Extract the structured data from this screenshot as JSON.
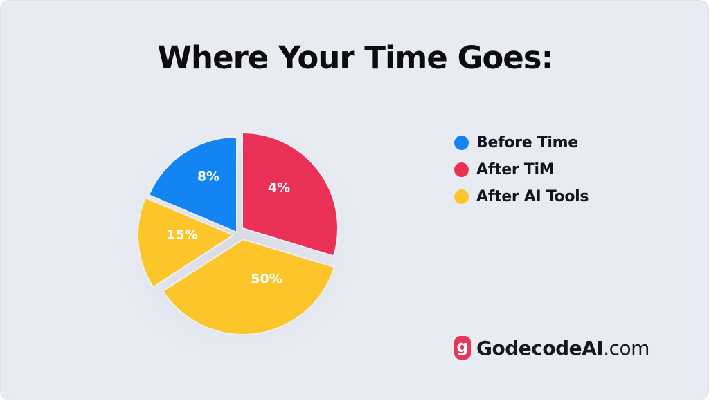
{
  "title": "Where Your Time Goes:",
  "chart_data": {
    "type": "pie",
    "title": "Where Your Time Goes:",
    "slices": [
      {
        "label": "8%",
        "value": 8,
        "color": "#1385f2"
      },
      {
        "label": "4%",
        "value": 4,
        "color": "#ea3057"
      },
      {
        "label": "50%",
        "value": 50,
        "color": "#fcc62a"
      },
      {
        "label": "15%",
        "value": 15,
        "color": "#fcc62a"
      }
    ],
    "legend": [
      {
        "label": "Before Time",
        "color": "#1385f2"
      },
      {
        "label": "After TiM",
        "color": "#ea3057"
      },
      {
        "label": "After AI Tools",
        "color": "#fcc62a"
      }
    ],
    "legend_position": "right"
  },
  "brand": {
    "logo_letter": "g",
    "name": "GodecodeAI",
    "domain": ".com",
    "logo_color": "#e8365b"
  }
}
